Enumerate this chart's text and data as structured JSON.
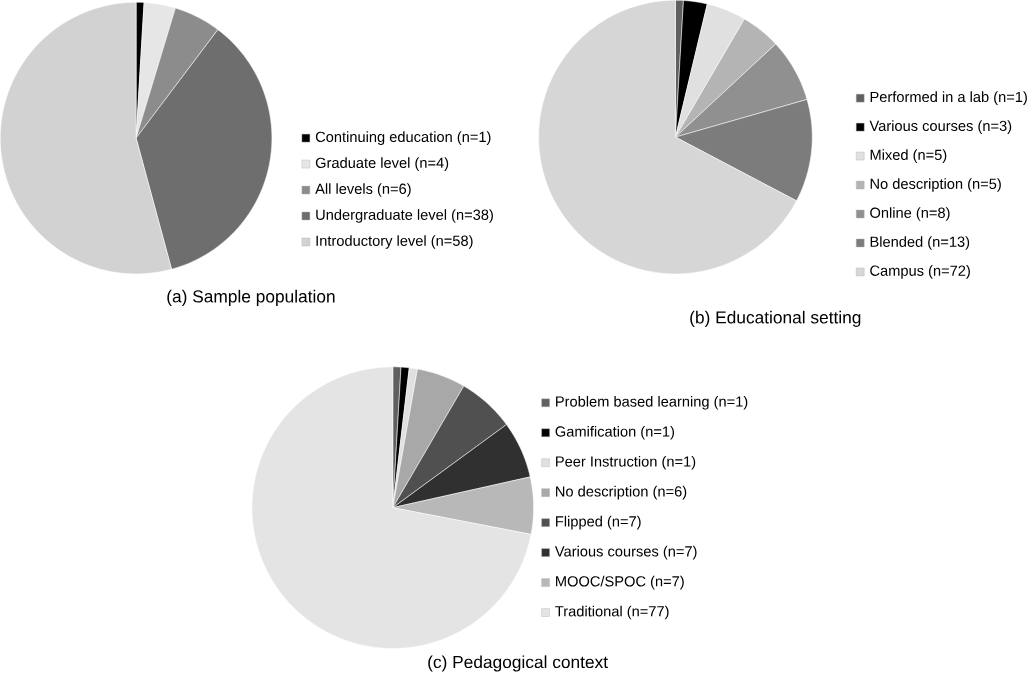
{
  "chart_data": [
    {
      "type": "pie",
      "title": "(a) Sample population",
      "legend": "right",
      "categories": [
        "Continuing education (n=1)",
        "Graduate level (n=4)",
        "All levels (n=6)",
        "Undergraduate level (n=38)",
        "Introductory level (n=58)"
      ],
      "values": [
        1,
        4,
        6,
        38,
        58
      ],
      "colors": [
        "#000000",
        "#e6e6e6",
        "#8c8c8c",
        "#6e6e6e",
        "#d2d2d2"
      ]
    },
    {
      "type": "pie",
      "title": "(b) Educational setting",
      "legend": "right",
      "categories": [
        "Performed in a lab (n=1)",
        "Various courses (n=3)",
        "Mixed (n=5)",
        "No description (n=5)",
        "Online (n=8)",
        "Blended (n=13)",
        "Campus (n=72)"
      ],
      "values": [
        1,
        3,
        5,
        5,
        8,
        13,
        72
      ],
      "colors": [
        "#606060",
        "#000000",
        "#e0e0e0",
        "#b4b4b4",
        "#909090",
        "#7c7c7c",
        "#d6d6d6"
      ]
    },
    {
      "type": "pie",
      "title": "(c) Pedagogical context",
      "legend": "right",
      "categories": [
        "Problem based learning (n=1)",
        "Gamification (n=1)",
        "Peer Instruction  (n=1)",
        "No description (n=6)",
        "Flipped (n=7)",
        "Various courses (n=7)",
        "MOOC/SPOC (n=7)",
        "Traditional (n=77)"
      ],
      "values": [
        1,
        1,
        1,
        6,
        7,
        7,
        7,
        77
      ],
      "colors": [
        "#606060",
        "#000000",
        "#e0e0e0",
        "#a8a8a8",
        "#505050",
        "#303030",
        "#b8b8b8",
        "#e4e4e4"
      ]
    }
  ]
}
